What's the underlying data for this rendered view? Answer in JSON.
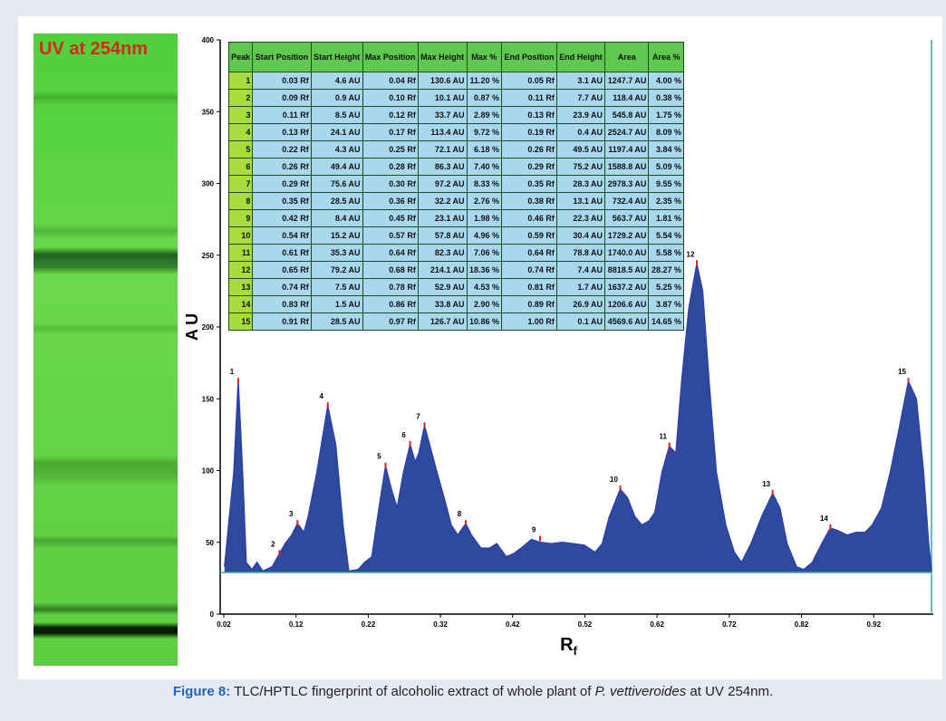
{
  "plate": {
    "label": "UV at 254nm"
  },
  "chart_data": {
    "type": "area",
    "ylabel": "A U",
    "xlabel": "R",
    "xlabel_sub": "f",
    "color": "#2f4a9c",
    "line_color": "#2a3fb0",
    "baseline_color": "#3aa8a0",
    "baseline": 29,
    "xlim": [
      0.015,
      1.0
    ],
    "ylim": [
      0,
      400
    ],
    "xticks": [
      0.02,
      0.12,
      0.22,
      0.32,
      0.42,
      0.52,
      0.62,
      0.72,
      0.82,
      0.92
    ],
    "yticks": [
      0,
      50,
      100,
      150,
      200,
      250,
      300,
      350,
      400
    ],
    "x": [
      0.021,
      0.034,
      0.04,
      0.046,
      0.051,
      0.059,
      0.066,
      0.074,
      0.087,
      0.097,
      0.105,
      0.114,
      0.122,
      0.131,
      0.137,
      0.149,
      0.164,
      0.175,
      0.185,
      0.193,
      0.206,
      0.215,
      0.225,
      0.235,
      0.244,
      0.252,
      0.26,
      0.269,
      0.278,
      0.285,
      0.29,
      0.298,
      0.305,
      0.315,
      0.325,
      0.335,
      0.344,
      0.355,
      0.363,
      0.376,
      0.388,
      0.398,
      0.411,
      0.421,
      0.432,
      0.446,
      0.458,
      0.474,
      0.489,
      0.504,
      0.519,
      0.534,
      0.544,
      0.554,
      0.569,
      0.579,
      0.589,
      0.599,
      0.609,
      0.617,
      0.627,
      0.637,
      0.646,
      0.654,
      0.664,
      0.675,
      0.683,
      0.692,
      0.702,
      0.715,
      0.727,
      0.737,
      0.75,
      0.765,
      0.78,
      0.79,
      0.8,
      0.813,
      0.823,
      0.835,
      0.848,
      0.86,
      0.871,
      0.883,
      0.896,
      0.908,
      0.918,
      0.931,
      0.943,
      0.956,
      0.968,
      0.979,
      0.989,
      0.996,
      1.0
    ],
    "values": [
      33,
      99,
      162,
      99,
      36,
      31,
      36,
      30,
      33,
      42,
      49,
      55,
      63,
      57,
      68,
      99,
      145,
      118,
      62,
      30,
      31,
      36,
      40,
      74,
      103,
      87,
      74,
      99,
      118,
      106,
      112,
      131,
      118,
      99,
      81,
      62,
      55,
      63,
      55,
      46,
      46,
      49,
      40,
      42,
      46,
      52,
      50,
      49,
      50,
      49,
      48,
      43,
      49,
      68,
      87,
      81,
      68,
      62,
      65,
      71,
      99,
      117,
      112,
      162,
      213,
      244,
      225,
      162,
      99,
      62,
      43,
      36,
      49,
      68,
      84,
      74,
      49,
      33,
      31,
      36,
      49,
      60,
      58,
      55,
      57,
      57,
      62,
      74,
      99,
      131,
      162,
      150,
      99,
      49,
      30
    ],
    "peaks": [
      {
        "label": "1",
        "x": 0.04,
        "y": 162
      },
      {
        "label": "2",
        "x": 0.097,
        "y": 42
      },
      {
        "label": "3",
        "x": 0.122,
        "y": 63
      },
      {
        "label": "4",
        "x": 0.164,
        "y": 145
      },
      {
        "label": "5",
        "x": 0.244,
        "y": 103
      },
      {
        "label": "6",
        "x": 0.278,
        "y": 118
      },
      {
        "label": "7",
        "x": 0.298,
        "y": 131
      },
      {
        "label": "8",
        "x": 0.355,
        "y": 63
      },
      {
        "label": "9",
        "x": 0.458,
        "y": 52
      },
      {
        "label": "10",
        "x": 0.569,
        "y": 87
      },
      {
        "label": "11",
        "x": 0.637,
        "y": 117
      },
      {
        "label": "12",
        "x": 0.675,
        "y": 244
      },
      {
        "label": "13",
        "x": 0.78,
        "y": 84
      },
      {
        "label": "14",
        "x": 0.86,
        "y": 60
      },
      {
        "label": "15",
        "x": 0.968,
        "y": 162
      }
    ]
  },
  "table": {
    "header": [
      "Peak",
      "Start Position",
      "Start Height",
      "Max Position",
      "Max Height",
      "Max %",
      "End Position",
      "End Height",
      "Area",
      "Area %"
    ],
    "rows": [
      [
        "1",
        "0.03 Rf",
        "4.6 AU",
        "0.04 Rf",
        "130.6 AU",
        "11.20 %",
        "0.05 Rf",
        "3.1 AU",
        "1247.7 AU",
        "4.00 %"
      ],
      [
        "2",
        "0.09 Rf",
        "0.9 AU",
        "0.10 Rf",
        "10.1 AU",
        "0.87 %",
        "0.11 Rf",
        "7.7 AU",
        "118.4 AU",
        "0.38 %"
      ],
      [
        "3",
        "0.11 Rf",
        "8.5 AU",
        "0.12 Rf",
        "33.7 AU",
        "2.89 %",
        "0.13 Rf",
        "23.9 AU",
        "545.8 AU",
        "1.75 %"
      ],
      [
        "4",
        "0.13 Rf",
        "24.1 AU",
        "0.17 Rf",
        "113.4 AU",
        "9.72 %",
        "0.19 Rf",
        "0.4 AU",
        "2524.7 AU",
        "8.09 %"
      ],
      [
        "5",
        "0.22 Rf",
        "4.3 AU",
        "0.25 Rf",
        "72.1 AU",
        "6.18 %",
        "0.26 Rf",
        "49.5 AU",
        "1197.4 AU",
        "3.84 %"
      ],
      [
        "6",
        "0.26 Rf",
        "49.4 AU",
        "0.28 Rf",
        "86.3 AU",
        "7.40 %",
        "0.29 Rf",
        "75.2 AU",
        "1588.8 AU",
        "5.09 %"
      ],
      [
        "7",
        "0.29 Rf",
        "75.6 AU",
        "0.30 Rf",
        "97.2 AU",
        "8.33 %",
        "0.35 Rf",
        "28.3 AU",
        "2978.3 AU",
        "9.55 %"
      ],
      [
        "8",
        "0.35 Rf",
        "28.5 AU",
        "0.36 Rf",
        "32.2 AU",
        "2.76 %",
        "0.38 Rf",
        "13.1 AU",
        "732.4 AU",
        "2.35 %"
      ],
      [
        "9",
        "0.42 Rf",
        "8.4 AU",
        "0.45 Rf",
        "23.1 AU",
        "1.98 %",
        "0.46 Rf",
        "22.3 AU",
        "563.7 AU",
        "1.81 %"
      ],
      [
        "10",
        "0.54 Rf",
        "15.2 AU",
        "0.57 Rf",
        "57.8 AU",
        "4.96 %",
        "0.59 Rf",
        "30.4 AU",
        "1729.2 AU",
        "5.54 %"
      ],
      [
        "11",
        "0.61 Rf",
        "35.3 AU",
        "0.64 Rf",
        "82.3 AU",
        "7.06 %",
        "0.64 Rf",
        "78.8 AU",
        "1740.0 AU",
        "5.58 %"
      ],
      [
        "12",
        "0.65 Rf",
        "79.2 AU",
        "0.68 Rf",
        "214.1 AU",
        "18.36 %",
        "0.74 Rf",
        "7.4 AU",
        "8818.5 AU",
        "28.27 %"
      ],
      [
        "13",
        "0.74 Rf",
        "7.5 AU",
        "0.78 Rf",
        "52.9 AU",
        "4.53 %",
        "0.81 Rf",
        "1.7 AU",
        "1637.2 AU",
        "5.25 %"
      ],
      [
        "14",
        "0.83 Rf",
        "1.5 AU",
        "0.86 Rf",
        "33.8 AU",
        "2.90 %",
        "0.89 Rf",
        "26.9 AU",
        "1206.6 AU",
        "3.87 %"
      ],
      [
        "15",
        "0.91 Rf",
        "28.5 AU",
        "0.97 Rf",
        "126.7 AU",
        "10.86 %",
        "1.00 Rf",
        "0.1 AU",
        "4569.6 AU",
        "14.65 %"
      ]
    ]
  },
  "caption": {
    "label": "Figure 8:",
    "text_before": "TLC/HPTLC fingerprint of alcoholic extract of whole plant of ",
    "species": "P. vettiveroides",
    "text_after": " at UV 254nm."
  }
}
